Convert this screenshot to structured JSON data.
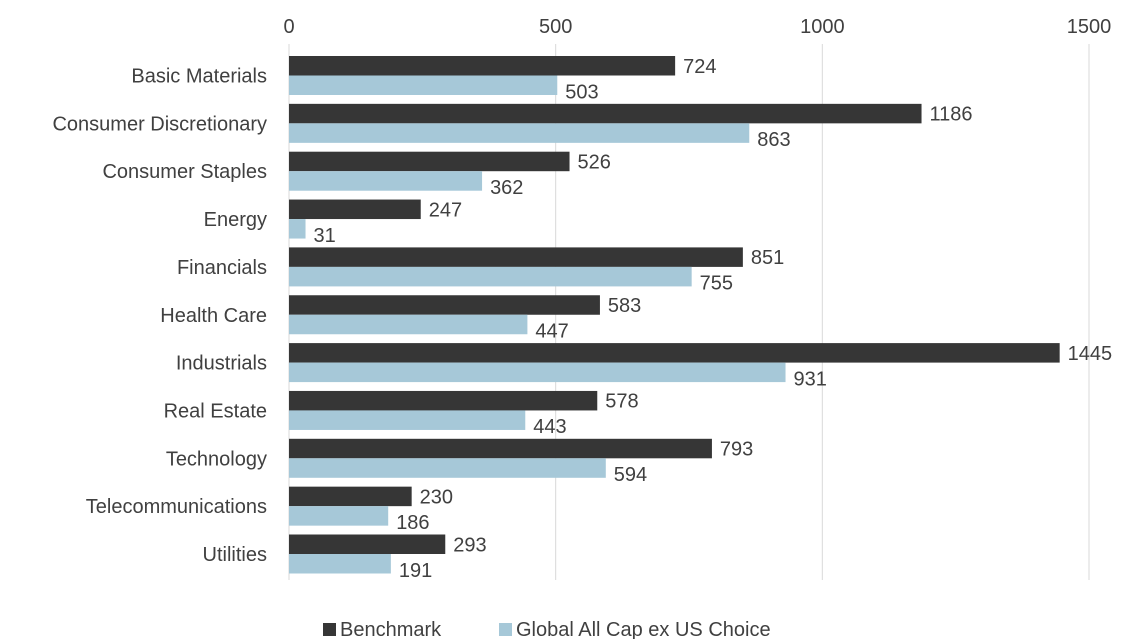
{
  "chart_data": {
    "type": "bar",
    "orientation": "horizontal",
    "title": "",
    "xlabel": "",
    "ylabel": "",
    "xlim": [
      0,
      1500
    ],
    "xticks": [
      "0",
      "500",
      "1000",
      "1500"
    ],
    "x_axis_position": "top",
    "grid": true,
    "legend_position": "bottom",
    "categories": [
      "Basic Materials",
      "Consumer Discretionary",
      "Consumer Staples",
      "Energy",
      "Financials",
      "Health Care",
      "Industrials",
      "Real Estate",
      "Technology",
      "Telecommunications",
      "Utilities"
    ],
    "series": [
      {
        "name": "Benchmark",
        "color": "#363636",
        "values": [
          724,
          1186,
          526,
          247,
          851,
          583,
          1445,
          578,
          793,
          230,
          293
        ]
      },
      {
        "name": "Global All Cap ex US Choice",
        "color": "#a6c8d8",
        "values": [
          503,
          863,
          362,
          31,
          755,
          447,
          931,
          443,
          594,
          186,
          191
        ]
      }
    ]
  }
}
